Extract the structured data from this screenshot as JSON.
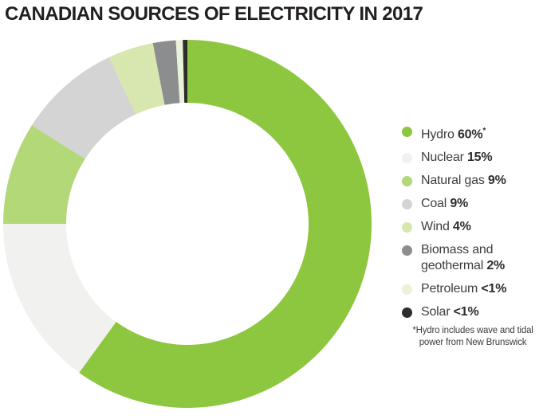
{
  "title": "CANADIAN SOURCES OF ELECTRICITY IN 2017",
  "chart_data": {
    "type": "pie",
    "subtype": "donut",
    "title": "Canadian sources of electricity in 2017",
    "categories": [
      "Hydro",
      "Nuclear",
      "Natural gas",
      "Coal",
      "Wind",
      "Biomass and geothermal",
      "Petroleum",
      "Solar"
    ],
    "values": [
      60,
      15,
      9,
      9,
      4,
      2,
      0.6,
      0.4
    ],
    "value_labels": [
      "60%",
      "15%",
      "9%",
      "9%",
      "4%",
      "2%",
      "<1%",
      "<1%"
    ],
    "colors": [
      "#8dc63f",
      "#f1f1ef",
      "#b2d878",
      "#d3d4d3",
      "#d8e6af",
      "#8b8d8f",
      "#eaf2da",
      "#2e2d2c"
    ],
    "start_angle_deg": 0,
    "direction": "clockwise",
    "inner_radius_ratio": 0.658,
    "legend_position": "right",
    "footnote": "*Hydro includes wave and tidal power from New Brunswick"
  },
  "legend": {
    "items": [
      {
        "name": "Hydro",
        "value": "60%",
        "suffix": "*",
        "color": "#8dc63f"
      },
      {
        "name": "Nuclear",
        "value": "15%",
        "color": "#f1f1ef"
      },
      {
        "name": "Natural gas",
        "value": "9%",
        "color": "#b2d878"
      },
      {
        "name": "Coal",
        "value": "9%",
        "color": "#d3d4d3"
      },
      {
        "name": "Wind",
        "value": "4%",
        "color": "#d8e6af"
      },
      {
        "name": "Biomass and geothermal",
        "value": "2%",
        "color": "#8b8d8f"
      },
      {
        "name": "Petroleum",
        "value": "<1%",
        "color": "#eaf2da"
      },
      {
        "name": "Solar",
        "value": "<1%",
        "color": "#2e2d2c"
      }
    ]
  },
  "footnote": {
    "line1": "*Hydro includes wave and tidal",
    "line2": "power from New Brunswick"
  }
}
